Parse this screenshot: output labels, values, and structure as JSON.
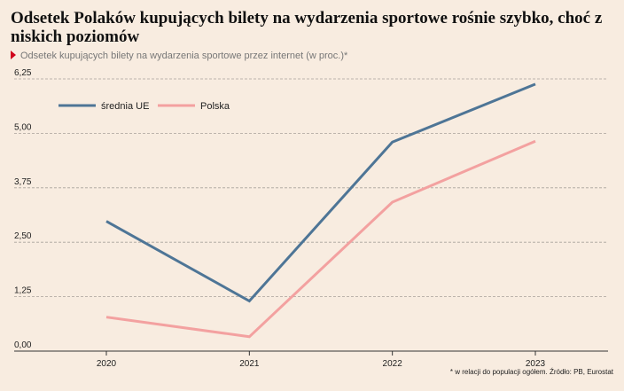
{
  "header": {
    "title": "Odsetek Polaków kupujących bilety na wydarzenia sportowe rośnie szybko, choć z niskich poziomów",
    "subtitle": "Odsetek kupujących bilety na wydarzenia sportowe przez internet (w proc.)*"
  },
  "footnote": "* w relacji do populacji ogółem. Źródło: PB, Eurostat",
  "colors": {
    "background": "#f8ece0",
    "eu": "#4e7596",
    "pl": "#f3a1a0",
    "marker": "#d0021b"
  },
  "chart_data": {
    "type": "line",
    "categories": [
      "2020",
      "2021",
      "2022",
      "2023"
    ],
    "series": [
      {
        "name": "średnia UE",
        "values": [
          2.98,
          1.15,
          4.8,
          6.13
        ]
      },
      {
        "name": "Polska",
        "values": [
          0.78,
          0.33,
          3.42,
          4.82
        ]
      }
    ],
    "yticks": [
      "0,00",
      "1,25",
      "2,50",
      "3,75",
      "5,00",
      "6,25"
    ],
    "ylim": [
      0,
      6.25
    ],
    "grid": true,
    "legend_position": "top-left"
  }
}
